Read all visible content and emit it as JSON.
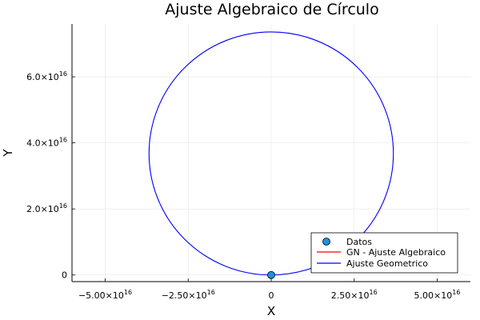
{
  "chart_data": {
    "type": "scatter",
    "title": "Ajuste Algebraico de Círculo",
    "xlabel": "X",
    "ylabel": "Y",
    "xlim": [
      -6e+16,
      6e+16
    ],
    "ylim": [
      -2000000000000000.0,
      7.6e+16
    ],
    "grid": true,
    "legend_position": "bottom-right",
    "x_ticks": [
      {
        "value": -5e+16,
        "label": "−5.00×10",
        "exp": "16"
      },
      {
        "value": -2.5e+16,
        "label": "−2.50×10",
        "exp": "16"
      },
      {
        "value": 0,
        "label": "0",
        "exp": ""
      },
      {
        "value": 2.5e+16,
        "label": "2.50×10",
        "exp": "16"
      },
      {
        "value": 5e+16,
        "label": "5.00×10",
        "exp": "16"
      }
    ],
    "y_ticks": [
      {
        "value": 0,
        "label": "0",
        "exp": ""
      },
      {
        "value": 2e+16,
        "label": "2.0×10",
        "exp": "16"
      },
      {
        "value": 4e+16,
        "label": "4.0×10",
        "exp": "16"
      },
      {
        "value": 6e+16,
        "label": "6.0×10",
        "exp": "16"
      }
    ],
    "series": [
      {
        "name": "Datos",
        "kind": "scatter",
        "color": "#1f90e0",
        "points": [
          [
            0,
            0
          ]
        ]
      },
      {
        "name": "GN - Ajuste Algebraico",
        "kind": "line",
        "color": "#ff0000",
        "points": []
      },
      {
        "name": "Ajuste Geometrico",
        "kind": "circle",
        "color": "#0000ff",
        "center": [
          0,
          3.68e+16
        ],
        "radius": 3.68e+16
      }
    ]
  }
}
